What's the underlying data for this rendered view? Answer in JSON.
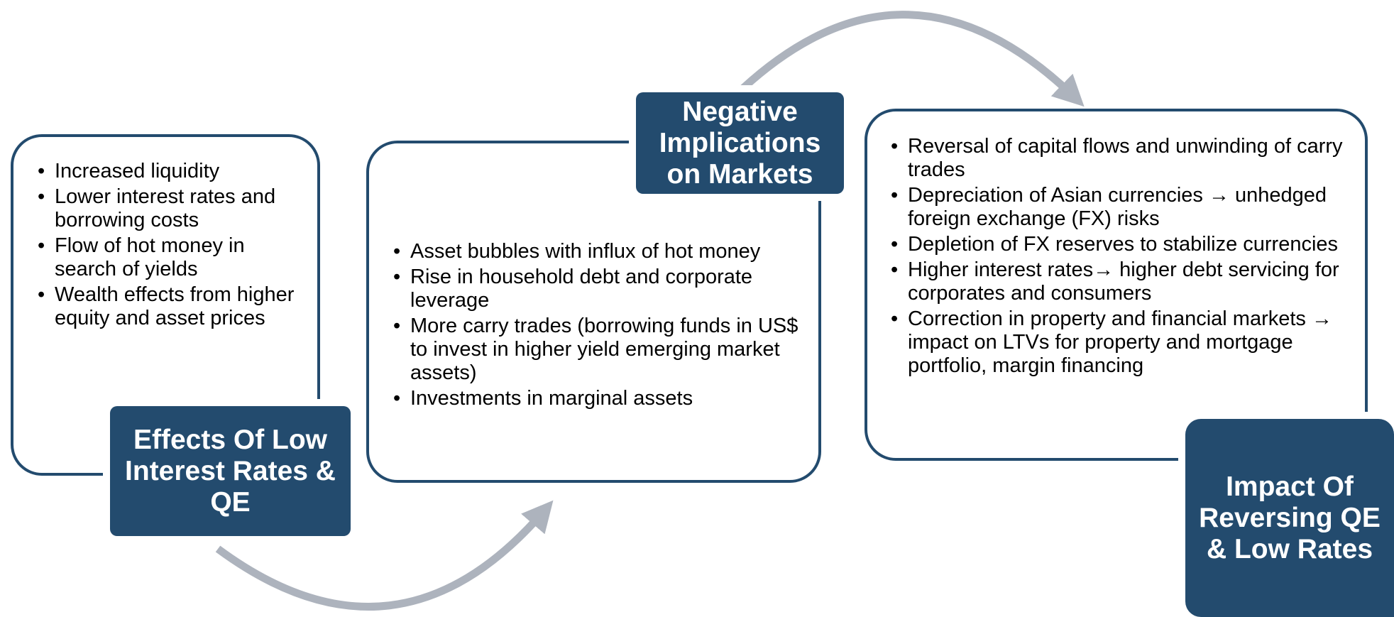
{
  "panels": [
    {
      "title": "Effects Of Low Interest Rates & QE",
      "bullets": [
        "Increased liquidity",
        "Lower interest rates and borrowing costs",
        "Flow of hot money in search of yields",
        "Wealth effects from higher equity and asset prices"
      ]
    },
    {
      "title": "Negative Implications on Markets",
      "bullets": [
        "Asset bubbles with influx of hot money",
        "Rise in household debt and corporate leverage",
        "More carry trades (borrowing funds in US$ to invest in higher yield emerging market assets)",
        "Investments in marginal assets"
      ]
    },
    {
      "title": "Impact Of Reversing QE & Low Rates",
      "bullets": [
        "Reversal of capital flows and unwinding of carry trades",
        "Depreciation of Asian currencies → unhedged foreign exchange (FX) risks",
        "Depletion of FX reserves to stabilize currencies",
        "Higher interest rates→ higher debt servicing for corporates and consumers",
        "Correction in property and financial markets → impact on LTVs for property and mortgage portfolio, margin financing"
      ]
    }
  ]
}
